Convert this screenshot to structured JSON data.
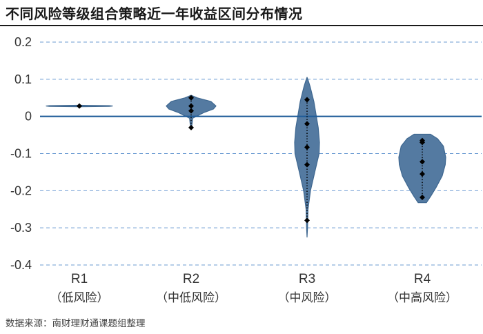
{
  "header": {
    "title": "不同风险等级组合策略近一年收益区间分布情况"
  },
  "footer": {
    "source": "数据来源：南财理财通课题组整理"
  },
  "chart_data": {
    "type": "violin",
    "ylim": [
      -0.4,
      0.2
    ],
    "yticks": [
      0.2,
      0.1,
      0,
      -0.1,
      -0.2,
      -0.3,
      -0.4
    ],
    "ytick_labels": [
      "0.2",
      "0.1",
      "0",
      "-0.1",
      "-0.2",
      "-0.3",
      "-0.4"
    ],
    "grid": "horizontal-dashed",
    "colors": {
      "violin_fill": "#547aa1",
      "violin_stroke": "#3e6790",
      "zero_line": "#1f5c99",
      "grid": "#6b9bd2",
      "point": "#000000"
    },
    "categories": [
      {
        "code": "R1",
        "label": "（低风险）",
        "points": [
          0.028
        ],
        "profile": [
          [
            0.026,
            0
          ],
          [
            0.027,
            0.9
          ],
          [
            0.028,
            1.0
          ],
          [
            0.029,
            0.9
          ],
          [
            0.03,
            0
          ]
        ]
      },
      {
        "code": "R2",
        "label": "（中低风险）",
        "points": [
          0.05,
          0.028,
          0.015,
          -0.03
        ],
        "profile": [
          [
            -0.035,
            0
          ],
          [
            -0.02,
            0.04
          ],
          [
            -0.005,
            0.06
          ],
          [
            0.01,
            0.5
          ],
          [
            0.02,
            0.9
          ],
          [
            0.028,
            1.0
          ],
          [
            0.04,
            0.8
          ],
          [
            0.05,
            0.25
          ],
          [
            0.057,
            0
          ]
        ]
      },
      {
        "code": "R3",
        "label": "（中风险）",
        "points": [
          0.045,
          -0.02,
          -0.083,
          -0.13,
          -0.28
        ],
        "profile": [
          [
            -0.325,
            0
          ],
          [
            -0.3,
            0.04
          ],
          [
            -0.25,
            0.08
          ],
          [
            -0.2,
            0.28
          ],
          [
            -0.15,
            0.62
          ],
          [
            -0.1,
            0.97
          ],
          [
            -0.07,
            1.0
          ],
          [
            -0.03,
            0.9
          ],
          [
            0.0,
            0.75
          ],
          [
            0.04,
            0.55
          ],
          [
            0.08,
            0.25
          ],
          [
            0.1,
            0.06
          ],
          [
            0.105,
            0
          ]
        ]
      },
      {
        "code": "R4",
        "label": "（中高风险）",
        "points": [
          -0.065,
          -0.07,
          -0.122,
          -0.155,
          -0.218
        ],
        "profile": [
          [
            -0.232,
            0.18
          ],
          [
            -0.215,
            0.36
          ],
          [
            -0.19,
            0.6
          ],
          [
            -0.16,
            0.85
          ],
          [
            -0.13,
            0.98
          ],
          [
            -0.11,
            1.0
          ],
          [
            -0.08,
            0.9
          ],
          [
            -0.06,
            0.65
          ],
          [
            -0.048,
            0.35
          ]
        ]
      }
    ]
  }
}
